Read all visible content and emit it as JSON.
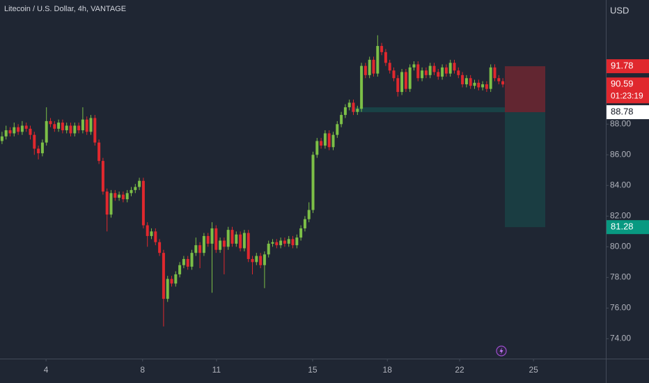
{
  "chart_data": {
    "type": "candlestick",
    "title": "Litecoin / U.S. Dollar, 4h, VANTAGE",
    "currency": "USD",
    "up_color": "#7cbf47",
    "down_color": "#e0282e",
    "ylim": [
      72.7,
      96.1
    ],
    "yticks": [
      {
        "value": 74,
        "label": "74.00"
      },
      {
        "value": 76,
        "label": "76.00"
      },
      {
        "value": 78,
        "label": "78.00"
      },
      {
        "value": 80,
        "label": "80.00"
      },
      {
        "value": 82,
        "label": "82.00"
      },
      {
        "value": 84,
        "label": "84.00"
      },
      {
        "value": 86,
        "label": "86.00"
      },
      {
        "value": 88,
        "label": "88.00"
      }
    ],
    "xlim": [
      -0.5,
      149.5
    ],
    "xticks": [
      {
        "value": 10.9,
        "label": "4"
      },
      {
        "value": 34.8,
        "label": "8"
      },
      {
        "value": 53.1,
        "label": "11"
      },
      {
        "value": 76.9,
        "label": "15"
      },
      {
        "value": 95.4,
        "label": "18"
      },
      {
        "value": 113.3,
        "label": "22"
      },
      {
        "value": 131.6,
        "label": "25"
      }
    ],
    "grid": false,
    "ohlc": [
      [
        86.9,
        87.5,
        86.7,
        87.2
      ],
      [
        87.2,
        87.9,
        87.0,
        87.6
      ],
      [
        87.6,
        87.8,
        87.2,
        87.4
      ],
      [
        87.4,
        88.1,
        87.2,
        87.8
      ],
      [
        87.8,
        88.0,
        87.3,
        87.5
      ],
      [
        87.5,
        88.2,
        87.3,
        87.9
      ],
      [
        87.9,
        88.1,
        87.5,
        87.7
      ],
      [
        87.7,
        87.9,
        87.0,
        87.3
      ],
      [
        87.3,
        87.5,
        86.0,
        86.4
      ],
      [
        86.4,
        86.6,
        85.7,
        86.1
      ],
      [
        86.1,
        87.0,
        85.9,
        86.8
      ],
      [
        86.8,
        89.1,
        86.6,
        88.2
      ],
      [
        88.2,
        88.4,
        87.8,
        88.0
      ],
      [
        88.0,
        88.2,
        87.5,
        87.7
      ],
      [
        87.7,
        88.3,
        87.5,
        88.1
      ],
      [
        88.1,
        88.3,
        87.4,
        87.6
      ],
      [
        87.6,
        88.1,
        87.4,
        87.9
      ],
      [
        87.9,
        88.1,
        87.2,
        87.4
      ],
      [
        87.4,
        88.1,
        87.2,
        87.9
      ],
      [
        87.9,
        88.1,
        87.4,
        87.6
      ],
      [
        87.6,
        89.1,
        87.4,
        88.3
      ],
      [
        88.3,
        88.5,
        87.3,
        87.5
      ],
      [
        87.5,
        88.6,
        87.3,
        88.4
      ],
      [
        88.4,
        88.6,
        86.6,
        86.8
      ],
      [
        86.8,
        87.0,
        85.4,
        85.6
      ],
      [
        85.6,
        85.8,
        83.4,
        83.6
      ],
      [
        83.6,
        83.8,
        81.0,
        82.1
      ],
      [
        82.1,
        83.7,
        81.9,
        83.5
      ],
      [
        83.5,
        83.7,
        83.0,
        83.2
      ],
      [
        83.2,
        83.6,
        83.0,
        83.4
      ],
      [
        83.4,
        83.6,
        82.9,
        83.1
      ],
      [
        83.1,
        83.7,
        82.9,
        83.5
      ],
      [
        83.5,
        83.9,
        83.3,
        83.7
      ],
      [
        83.7,
        84.1,
        83.5,
        83.9
      ],
      [
        83.9,
        84.5,
        83.7,
        84.3
      ],
      [
        84.3,
        84.5,
        81.2,
        81.4
      ],
      [
        81.4,
        81.6,
        80.0,
        80.7
      ],
      [
        80.7,
        81.2,
        80.5,
        81.0
      ],
      [
        81.0,
        81.2,
        80.1,
        80.3
      ],
      [
        80.3,
        80.5,
        79.4,
        79.6
      ],
      [
        79.6,
        79.8,
        74.8,
        76.6
      ],
      [
        76.6,
        78.1,
        76.4,
        77.9
      ],
      [
        77.9,
        78.1,
        77.4,
        77.6
      ],
      [
        77.6,
        78.4,
        77.4,
        78.2
      ],
      [
        78.2,
        79.0,
        78.0,
        78.8
      ],
      [
        78.8,
        79.4,
        78.6,
        79.2
      ],
      [
        79.2,
        79.4,
        78.5,
        78.7
      ],
      [
        78.7,
        79.8,
        78.5,
        79.6
      ],
      [
        79.6,
        80.6,
        79.4,
        80.1
      ],
      [
        80.1,
        80.3,
        78.6,
        79.6
      ],
      [
        79.6,
        80.9,
        79.4,
        80.7
      ],
      [
        80.7,
        80.9,
        80.0,
        80.2
      ],
      [
        80.2,
        81.6,
        77.0,
        81.2
      ],
      [
        81.2,
        81.4,
        79.6,
        79.8
      ],
      [
        79.8,
        80.6,
        79.6,
        80.4
      ],
      [
        80.4,
        80.6,
        78.2,
        80.0
      ],
      [
        80.0,
        81.3,
        79.8,
        81.1
      ],
      [
        81.1,
        81.3,
        80.0,
        80.2
      ],
      [
        80.2,
        81.0,
        80.0,
        80.8
      ],
      [
        80.8,
        81.0,
        79.7,
        79.9
      ],
      [
        79.9,
        81.1,
        79.7,
        80.9
      ],
      [
        80.9,
        81.1,
        79.0,
        79.2
      ],
      [
        79.2,
        79.4,
        78.2,
        79.0
      ],
      [
        79.0,
        79.6,
        78.8,
        79.4
      ],
      [
        79.4,
        79.6,
        78.6,
        78.8
      ],
      [
        78.8,
        79.7,
        77.3,
        79.5
      ],
      [
        79.5,
        80.4,
        79.3,
        80.2
      ],
      [
        80.2,
        80.5,
        80.0,
        80.3
      ],
      [
        80.3,
        80.5,
        79.9,
        80.1
      ],
      [
        80.1,
        80.6,
        79.9,
        80.4
      ],
      [
        80.4,
        80.6,
        80.0,
        80.2
      ],
      [
        80.2,
        80.7,
        80.0,
        80.5
      ],
      [
        80.5,
        80.7,
        79.9,
        80.1
      ],
      [
        80.1,
        80.8,
        79.9,
        80.6
      ],
      [
        80.6,
        81.4,
        80.4,
        81.2
      ],
      [
        81.2,
        82.0,
        81.0,
        81.8
      ],
      [
        81.8,
        82.9,
        81.6,
        82.4
      ],
      [
        82.4,
        86.2,
        82.2,
        86.0
      ],
      [
        86.0,
        87.1,
        85.8,
        86.9
      ],
      [
        86.9,
        87.1,
        86.4,
        86.6
      ],
      [
        86.6,
        87.6,
        86.4,
        87.4
      ],
      [
        87.4,
        87.6,
        86.3,
        86.5
      ],
      [
        86.5,
        87.5,
        86.3,
        87.3
      ],
      [
        87.3,
        88.2,
        87.1,
        88.0
      ],
      [
        88.0,
        88.8,
        87.8,
        88.6
      ],
      [
        88.6,
        89.3,
        88.4,
        89.1
      ],
      [
        89.1,
        89.6,
        88.9,
        89.4
      ],
      [
        89.4,
        89.6,
        88.6,
        88.8
      ],
      [
        88.8,
        89.2,
        88.6,
        89.0
      ],
      [
        89.0,
        92.0,
        88.8,
        91.8
      ],
      [
        91.8,
        92.0,
        91.0,
        91.2
      ],
      [
        91.2,
        92.4,
        91.0,
        92.2
      ],
      [
        92.2,
        92.4,
        91.1,
        91.3
      ],
      [
        91.3,
        93.8,
        91.1,
        93.1
      ],
      [
        93.1,
        93.3,
        92.5,
        92.7
      ],
      [
        92.7,
        92.9,
        91.8,
        92.0
      ],
      [
        92.0,
        92.2,
        91.3,
        91.5
      ],
      [
        91.5,
        91.7,
        90.8,
        91.0
      ],
      [
        91.0,
        91.2,
        89.8,
        90.1
      ],
      [
        90.1,
        91.6,
        89.9,
        91.4
      ],
      [
        91.4,
        91.6,
        90.1,
        90.3
      ],
      [
        90.3,
        91.9,
        90.1,
        91.7
      ],
      [
        91.7,
        92.1,
        91.5,
        91.9
      ],
      [
        91.9,
        92.1,
        90.8,
        91.0
      ],
      [
        91.0,
        91.7,
        90.8,
        91.5
      ],
      [
        91.5,
        91.7,
        91.0,
        91.2
      ],
      [
        91.2,
        92.0,
        91.0,
        91.8
      ],
      [
        91.8,
        92.0,
        91.2,
        91.4
      ],
      [
        91.4,
        91.6,
        90.9,
        91.1
      ],
      [
        91.1,
        91.9,
        90.9,
        91.7
      ],
      [
        91.7,
        91.9,
        91.1,
        91.3
      ],
      [
        91.3,
        92.2,
        91.1,
        92.0
      ],
      [
        92.0,
        92.2,
        91.3,
        91.5
      ],
      [
        91.5,
        91.7,
        91.0,
        91.2
      ],
      [
        91.2,
        91.4,
        90.4,
        90.6
      ],
      [
        90.6,
        91.2,
        90.4,
        91.0
      ],
      [
        91.0,
        91.2,
        90.3,
        90.5
      ],
      [
        90.5,
        90.9,
        90.3,
        90.7
      ],
      [
        90.7,
        90.9,
        90.2,
        90.4
      ],
      [
        90.4,
        90.8,
        90.2,
        90.6
      ],
      [
        90.6,
        90.8,
        90.1,
        90.3
      ],
      [
        90.3,
        91.9,
        90.1,
        91.7
      ],
      [
        91.7,
        91.9,
        90.8,
        91.0
      ],
      [
        91.0,
        91.2,
        90.6,
        90.8
      ],
      [
        90.8,
        91.0,
        90.4,
        90.59
      ]
    ],
    "last_price": 90.59,
    "countdown": "01:23:19",
    "position": {
      "entry": 88.78,
      "stop": 91.78,
      "target": 81.28,
      "stop_color": "#e0282e",
      "target_color": "#089981",
      "entry_color": "#ffffff"
    }
  }
}
